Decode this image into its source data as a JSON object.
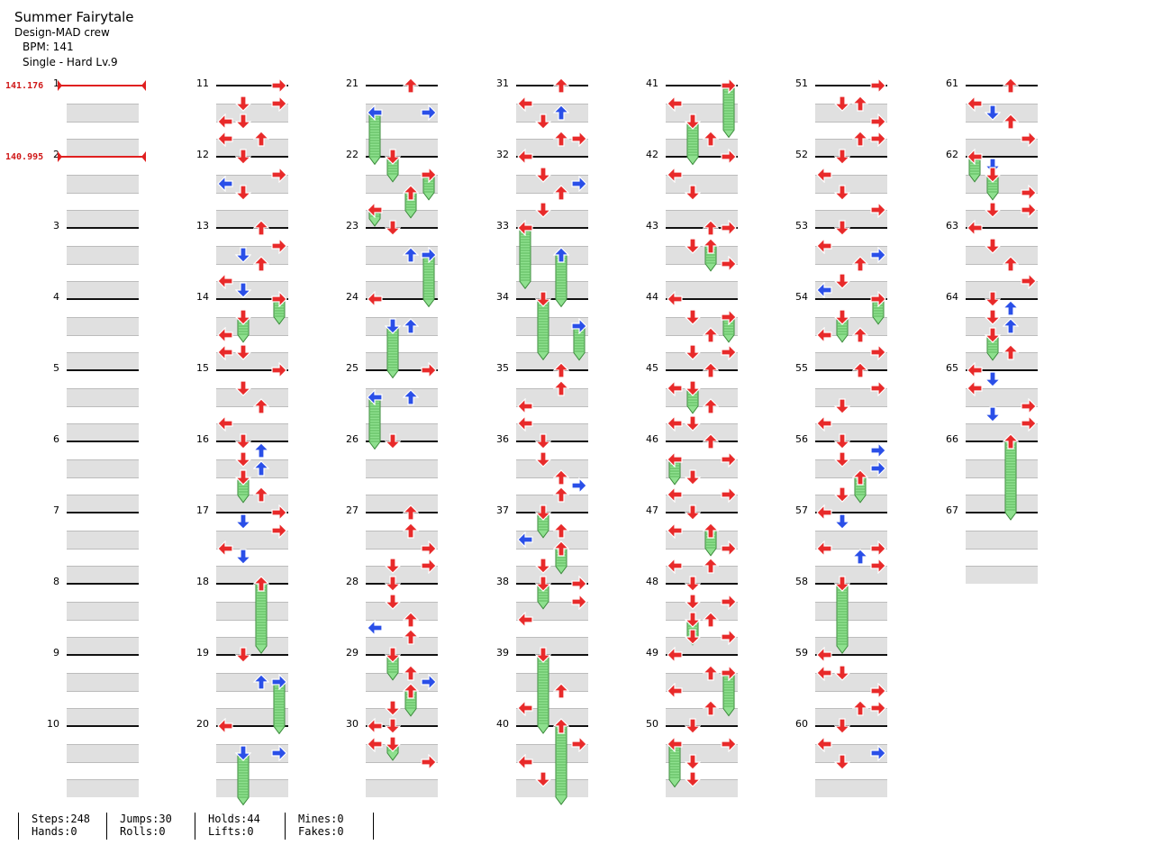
{
  "header": {
    "title": "Summer Fairytale",
    "artist": "Design-MAD crew",
    "bpm": "BPM: 141",
    "difficulty": "Single - Hard  Lv.9"
  },
  "bpm_changes": [
    {
      "label": "141.176",
      "measure": 1
    },
    {
      "label": "140.995",
      "measure": 2
    }
  ],
  "colors": {
    "quarter": "#e82a2a",
    "eighth": "#2a4fe8",
    "hold": "#8ee08e",
    "bpm": "#e02020"
  },
  "directions": [
    "left",
    "down",
    "up",
    "right"
  ],
  "columns": [
    {
      "start": 1,
      "end": 10
    },
    {
      "start": 11,
      "end": 20
    },
    {
      "start": 21,
      "end": 30
    },
    {
      "start": 31,
      "end": 40
    },
    {
      "start": 41,
      "end": 50
    },
    {
      "start": 51,
      "end": 60
    },
    {
      "start": 61,
      "end": 67
    }
  ],
  "notes": [
    {
      "m": 11,
      "b": 0,
      "l": 3
    },
    {
      "m": 11,
      "b": 1,
      "l": 1
    },
    {
      "m": 11,
      "b": 1,
      "l": 3
    },
    {
      "m": 11,
      "b": 2,
      "l": 0
    },
    {
      "m": 11,
      "b": 2,
      "l": 1
    },
    {
      "m": 11,
      "b": 3,
      "l": 0
    },
    {
      "m": 11,
      "b": 3,
      "l": 2
    },
    {
      "m": 12,
      "b": 0,
      "l": 1
    },
    {
      "m": 12,
      "b": 1,
      "l": 3
    },
    {
      "m": 12,
      "b": 1.5,
      "l": 0
    },
    {
      "m": 12,
      "b": 2,
      "l": 1
    },
    {
      "m": 13,
      "b": 0,
      "l": 2
    },
    {
      "m": 13,
      "b": 1,
      "l": 3
    },
    {
      "m": 13,
      "b": 1.5,
      "l": 1
    },
    {
      "m": 13,
      "b": 2,
      "l": 2
    },
    {
      "m": 13,
      "b": 3,
      "l": 0
    },
    {
      "m": 13,
      "b": 3.5,
      "l": 1
    },
    {
      "m": 14,
      "b": 0,
      "l": 3,
      "h": 1
    },
    {
      "m": 14,
      "b": 1,
      "l": 1,
      "h": 1
    },
    {
      "m": 14,
      "b": 2,
      "l": 0
    },
    {
      "m": 14,
      "b": 3,
      "l": 0
    },
    {
      "m": 14,
      "b": 3,
      "l": 1
    },
    {
      "m": 15,
      "b": 0,
      "l": 3
    },
    {
      "m": 15,
      "b": 1,
      "l": 1
    },
    {
      "m": 15,
      "b": 2,
      "l": 2
    },
    {
      "m": 15,
      "b": 3,
      "l": 0
    },
    {
      "m": 16,
      "b": 0,
      "l": 1
    },
    {
      "m": 16,
      "b": 0.5,
      "l": 2
    },
    {
      "m": 16,
      "b": 1,
      "l": 1
    },
    {
      "m": 16,
      "b": 1.5,
      "l": 2
    },
    {
      "m": 16,
      "b": 2,
      "l": 1,
      "h": 1
    },
    {
      "m": 16,
      "b": 3,
      "l": 2
    },
    {
      "m": 17,
      "b": 0,
      "l": 3
    },
    {
      "m": 17,
      "b": 0.5,
      "l": 1
    },
    {
      "m": 17,
      "b": 1,
      "l": 3
    },
    {
      "m": 17,
      "b": 2,
      "l": 0
    },
    {
      "m": 17,
      "b": 2.5,
      "l": 1
    },
    {
      "m": 18,
      "b": 0,
      "l": 2,
      "h": 3.5
    },
    {
      "m": 19,
      "b": 0,
      "l": 1
    },
    {
      "m": 19,
      "b": 1.5,
      "l": 2
    },
    {
      "m": 19,
      "b": 1.5,
      "l": 3,
      "h": 2.5
    },
    {
      "m": 20,
      "b": 0,
      "l": 0
    },
    {
      "m": 20,
      "b": 1.5,
      "l": 1,
      "h": 2.5
    },
    {
      "m": 20,
      "b": 1.5,
      "l": 3
    },
    {
      "m": 21,
      "b": 0,
      "l": 2
    },
    {
      "m": 21,
      "b": 1.5,
      "l": 0,
      "h": 2.5
    },
    {
      "m": 21,
      "b": 1.5,
      "l": 3
    },
    {
      "m": 22,
      "b": 0,
      "l": 1,
      "h": 1
    },
    {
      "m": 22,
      "b": 1,
      "l": 3,
      "h": 1
    },
    {
      "m": 22,
      "b": 2,
      "l": 2,
      "h": 1
    },
    {
      "m": 22,
      "b": 3,
      "l": 0,
      "h": 0.5
    },
    {
      "m": 23,
      "b": 0,
      "l": 1
    },
    {
      "m": 23,
      "b": 1.5,
      "l": 2
    },
    {
      "m": 23,
      "b": 1.5,
      "l": 3,
      "h": 2.5
    },
    {
      "m": 24,
      "b": 0,
      "l": 0
    },
    {
      "m": 24,
      "b": 1.5,
      "l": 1,
      "h": 2.5
    },
    {
      "m": 24,
      "b": 1.5,
      "l": 2
    },
    {
      "m": 25,
      "b": 0,
      "l": 3
    },
    {
      "m": 25,
      "b": 1.5,
      "l": 0,
      "h": 2.5
    },
    {
      "m": 25,
      "b": 1.5,
      "l": 2
    },
    {
      "m": 26,
      "b": 0,
      "l": 1
    },
    {
      "m": 27,
      "b": 0,
      "l": 2
    },
    {
      "m": 27,
      "b": 1,
      "l": 2
    },
    {
      "m": 27,
      "b": 2,
      "l": 3
    },
    {
      "m": 27,
      "b": 3,
      "l": 3
    },
    {
      "m": 27,
      "b": 3,
      "l": 1
    },
    {
      "m": 28,
      "b": 0,
      "l": 1
    },
    {
      "m": 28,
      "b": 1,
      "l": 1
    },
    {
      "m": 28,
      "b": 2,
      "l": 2
    },
    {
      "m": 28,
      "b": 2.5,
      "l": 0
    },
    {
      "m": 28,
      "b": 3,
      "l": 2
    },
    {
      "m": 29,
      "b": 0,
      "l": 1,
      "h": 1
    },
    {
      "m": 29,
      "b": 1,
      "l": 2
    },
    {
      "m": 29,
      "b": 1.5,
      "l": 3
    },
    {
      "m": 29,
      "b": 2,
      "l": 2,
      "h": 1
    },
    {
      "m": 29,
      "b": 3,
      "l": 1
    },
    {
      "m": 30,
      "b": 0,
      "l": 1
    },
    {
      "m": 30,
      "b": 0,
      "l": 0
    },
    {
      "m": 30,
      "b": 1,
      "l": 1,
      "h": 0.5
    },
    {
      "m": 30,
      "b": 1,
      "l": 0
    },
    {
      "m": 30,
      "b": 2,
      "l": 3
    },
    {
      "m": 31,
      "b": 0,
      "l": 2
    },
    {
      "m": 31,
      "b": 1,
      "l": 0
    },
    {
      "m": 31,
      "b": 1.5,
      "l": 2
    },
    {
      "m": 31,
      "b": 2,
      "l": 1
    },
    {
      "m": 31,
      "b": 3,
      "l": 2
    },
    {
      "m": 31,
      "b": 3,
      "l": 3
    },
    {
      "m": 32,
      "b": 0,
      "l": 0
    },
    {
      "m": 32,
      "b": 1,
      "l": 1
    },
    {
      "m": 32,
      "b": 1.5,
      "l": 3
    },
    {
      "m": 32,
      "b": 2,
      "l": 2
    },
    {
      "m": 32,
      "b": 3,
      "l": 1
    },
    {
      "m": 33,
      "b": 0,
      "l": 0,
      "h": 3
    },
    {
      "m": 33,
      "b": 1.5,
      "l": 2,
      "h": 2.5
    },
    {
      "m": 34,
      "b": 0,
      "l": 1,
      "h": 3
    },
    {
      "m": 34,
      "b": 1.5,
      "l": 3,
      "h": 1.5
    },
    {
      "m": 35,
      "b": 0,
      "l": 2
    },
    {
      "m": 35,
      "b": 1,
      "l": 2
    },
    {
      "m": 35,
      "b": 2,
      "l": 0
    },
    {
      "m": 35,
      "b": 3,
      "l": 0
    },
    {
      "m": 36,
      "b": 0,
      "l": 1
    },
    {
      "m": 36,
      "b": 1,
      "l": 1
    },
    {
      "m": 36,
      "b": 2,
      "l": 2
    },
    {
      "m": 36,
      "b": 2.5,
      "l": 3
    },
    {
      "m": 36,
      "b": 3,
      "l": 2
    },
    {
      "m": 37,
      "b": 0,
      "l": 1,
      "h": 1
    },
    {
      "m": 37,
      "b": 1,
      "l": 2
    },
    {
      "m": 37,
      "b": 1.5,
      "l": 0
    },
    {
      "m": 37,
      "b": 2,
      "l": 2,
      "h": 1
    },
    {
      "m": 37,
      "b": 3,
      "l": 1
    },
    {
      "m": 38,
      "b": 0,
      "l": 3
    },
    {
      "m": 38,
      "b": 0,
      "l": 1,
      "h": 1
    },
    {
      "m": 38,
      "b": 1,
      "l": 3
    },
    {
      "m": 38,
      "b": 2,
      "l": 0
    },
    {
      "m": 39,
      "b": 0,
      "l": 1,
      "h": 4
    },
    {
      "m": 39,
      "b": 2,
      "l": 2
    },
    {
      "m": 39,
      "b": 3,
      "l": 0
    },
    {
      "m": 40,
      "b": 0,
      "l": 2,
      "h": 4
    },
    {
      "m": 40,
      "b": 1,
      "l": 3
    },
    {
      "m": 40,
      "b": 2,
      "l": 0
    },
    {
      "m": 40,
      "b": 3,
      "l": 1
    },
    {
      "m": 41,
      "b": 0,
      "l": 3,
      "h": 2.5
    },
    {
      "m": 41,
      "b": 1,
      "l": 0
    },
    {
      "m": 41,
      "b": 2,
      "l": 1,
      "h": 2
    },
    {
      "m": 41,
      "b": 3,
      "l": 2
    },
    {
      "m": 42,
      "b": 0,
      "l": 3
    },
    {
      "m": 42,
      "b": 1,
      "l": 0
    },
    {
      "m": 42,
      "b": 2,
      "l": 1
    },
    {
      "m": 43,
      "b": 0,
      "l": 2
    },
    {
      "m": 43,
      "b": 0,
      "l": 3
    },
    {
      "m": 43,
      "b": 1,
      "l": 1
    },
    {
      "m": 43,
      "b": 1,
      "l": 2,
      "h": 1
    },
    {
      "m": 43,
      "b": 2,
      "l": 3
    },
    {
      "m": 44,
      "b": 0,
      "l": 0
    },
    {
      "m": 44,
      "b": 1,
      "l": 1
    },
    {
      "m": 44,
      "b": 1,
      "l": 3,
      "h": 1
    },
    {
      "m": 44,
      "b": 2,
      "l": 2
    },
    {
      "m": 44,
      "b": 3,
      "l": 1
    },
    {
      "m": 44,
      "b": 3,
      "l": 3
    },
    {
      "m": 45,
      "b": 0,
      "l": 2
    },
    {
      "m": 45,
      "b": 1,
      "l": 0
    },
    {
      "m": 45,
      "b": 1,
      "l": 1,
      "h": 1
    },
    {
      "m": 45,
      "b": 2,
      "l": 2
    },
    {
      "m": 45,
      "b": 3,
      "l": 0
    },
    {
      "m": 45,
      "b": 3,
      "l": 1
    },
    {
      "m": 46,
      "b": 0,
      "l": 2
    },
    {
      "m": 46,
      "b": 1,
      "l": 3
    },
    {
      "m": 46,
      "b": 1,
      "l": 0,
      "h": 1
    },
    {
      "m": 46,
      "b": 2,
      "l": 1
    },
    {
      "m": 46,
      "b": 3,
      "l": 0
    },
    {
      "m": 46,
      "b": 3,
      "l": 3
    },
    {
      "m": 47,
      "b": 0,
      "l": 1
    },
    {
      "m": 47,
      "b": 1,
      "l": 0
    },
    {
      "m": 47,
      "b": 1,
      "l": 2,
      "h": 1
    },
    {
      "m": 47,
      "b": 2,
      "l": 3
    },
    {
      "m": 47,
      "b": 3,
      "l": 0
    },
    {
      "m": 47,
      "b": 3,
      "l": 2
    },
    {
      "m": 48,
      "b": 0,
      "l": 1
    },
    {
      "m": 48,
      "b": 1,
      "l": 1
    },
    {
      "m": 48,
      "b": 1,
      "l": 3
    },
    {
      "m": 48,
      "b": 2,
      "l": 1,
      "h": 1
    },
    {
      "m": 48,
      "b": 2,
      "l": 2
    },
    {
      "m": 48,
      "b": 3,
      "l": 3
    },
    {
      "m": 48,
      "b": 3,
      "l": 1
    },
    {
      "m": 49,
      "b": 0,
      "l": 0
    },
    {
      "m": 49,
      "b": 1,
      "l": 2
    },
    {
      "m": 49,
      "b": 1,
      "l": 3,
      "h": 2
    },
    {
      "m": 49,
      "b": 2,
      "l": 0
    },
    {
      "m": 49,
      "b": 3,
      "l": 2
    },
    {
      "m": 50,
      "b": 0,
      "l": 1
    },
    {
      "m": 50,
      "b": 1,
      "l": 0,
      "h": 2
    },
    {
      "m": 50,
      "b": 1,
      "l": 3
    },
    {
      "m": 50,
      "b": 2,
      "l": 1
    },
    {
      "m": 50,
      "b": 3,
      "l": 1
    },
    {
      "m": 51,
      "b": 0,
      "l": 3
    },
    {
      "m": 51,
      "b": 1,
      "l": 1
    },
    {
      "m": 51,
      "b": 1,
      "l": 2
    },
    {
      "m": 51,
      "b": 2,
      "l": 3
    },
    {
      "m": 51,
      "b": 3,
      "l": 2
    },
    {
      "m": 51,
      "b": 3,
      "l": 3
    },
    {
      "m": 52,
      "b": 0,
      "l": 1
    },
    {
      "m": 52,
      "b": 1,
      "l": 0
    },
    {
      "m": 52,
      "b": 2,
      "l": 1
    },
    {
      "m": 52,
      "b": 3,
      "l": 3
    },
    {
      "m": 53,
      "b": 0,
      "l": 1
    },
    {
      "m": 53,
      "b": 1,
      "l": 0
    },
    {
      "m": 53,
      "b": 1.5,
      "l": 3
    },
    {
      "m": 53,
      "b": 2,
      "l": 2
    },
    {
      "m": 53,
      "b": 3,
      "l": 1
    },
    {
      "m": 53,
      "b": 3.5,
      "l": 0
    },
    {
      "m": 54,
      "b": 0,
      "l": 3,
      "h": 1
    },
    {
      "m": 54,
      "b": 1,
      "l": 1,
      "h": 1
    },
    {
      "m": 54,
      "b": 2,
      "l": 0
    },
    {
      "m": 54,
      "b": 2,
      "l": 2
    },
    {
      "m": 54,
      "b": 3,
      "l": 3
    },
    {
      "m": 55,
      "b": 0,
      "l": 2
    },
    {
      "m": 55,
      "b": 1,
      "l": 3
    },
    {
      "m": 55,
      "b": 2,
      "l": 1
    },
    {
      "m": 55,
      "b": 3,
      "l": 0
    },
    {
      "m": 56,
      "b": 0,
      "l": 1
    },
    {
      "m": 56,
      "b": 0.5,
      "l": 3
    },
    {
      "m": 56,
      "b": 1,
      "l": 1
    },
    {
      "m": 56,
      "b": 1.5,
      "l": 3
    },
    {
      "m": 56,
      "b": 2,
      "l": 2,
      "h": 1
    },
    {
      "m": 56,
      "b": 3,
      "l": 1
    },
    {
      "m": 57,
      "b": 0,
      "l": 0
    },
    {
      "m": 57,
      "b": 0.5,
      "l": 1
    },
    {
      "m": 57,
      "b": 2,
      "l": 0
    },
    {
      "m": 57,
      "b": 2,
      "l": 3
    },
    {
      "m": 57,
      "b": 2.5,
      "l": 2
    },
    {
      "m": 57,
      "b": 3,
      "l": 3
    },
    {
      "m": 58,
      "b": 0,
      "l": 1,
      "h": 3.5
    },
    {
      "m": 59,
      "b": 0,
      "l": 0
    },
    {
      "m": 59,
      "b": 1,
      "l": 1
    },
    {
      "m": 59,
      "b": 1,
      "l": 0
    },
    {
      "m": 59,
      "b": 2,
      "l": 3
    },
    {
      "m": 59,
      "b": 3,
      "l": 2
    },
    {
      "m": 59,
      "b": 3,
      "l": 3
    },
    {
      "m": 60,
      "b": 0,
      "l": 1
    },
    {
      "m": 60,
      "b": 1,
      "l": 0
    },
    {
      "m": 60,
      "b": 1.5,
      "l": 3
    },
    {
      "m": 60,
      "b": 2,
      "l": 1
    },
    {
      "m": 61,
      "b": 0,
      "l": 2
    },
    {
      "m": 61,
      "b": 1,
      "l": 0
    },
    {
      "m": 61,
      "b": 1.5,
      "l": 1
    },
    {
      "m": 61,
      "b": 2,
      "l": 2
    },
    {
      "m": 61,
      "b": 3,
      "l": 3
    },
    {
      "m": 62,
      "b": 0,
      "l": 0,
      "h": 1
    },
    {
      "m": 62,
      "b": 0.5,
      "l": 1
    },
    {
      "m": 62,
      "b": 1,
      "l": 1,
      "h": 1
    },
    {
      "m": 62,
      "b": 2,
      "l": 3
    },
    {
      "m": 62,
      "b": 3,
      "l": 1
    },
    {
      "m": 62,
      "b": 3,
      "l": 3
    },
    {
      "m": 63,
      "b": 0,
      "l": 0
    },
    {
      "m": 63,
      "b": 1,
      "l": 1
    },
    {
      "m": 63,
      "b": 2,
      "l": 2
    },
    {
      "m": 63,
      "b": 3,
      "l": 3
    },
    {
      "m": 64,
      "b": 0,
      "l": 1
    },
    {
      "m": 64,
      "b": 0.5,
      "l": 2
    },
    {
      "m": 64,
      "b": 1,
      "l": 1
    },
    {
      "m": 64,
      "b": 1.5,
      "l": 2
    },
    {
      "m": 64,
      "b": 2,
      "l": 1,
      "h": 1
    },
    {
      "m": 64,
      "b": 3,
      "l": 2
    },
    {
      "m": 65,
      "b": 0,
      "l": 0
    },
    {
      "m": 65,
      "b": 0.5,
      "l": 1
    },
    {
      "m": 65,
      "b": 1,
      "l": 0
    },
    {
      "m": 65,
      "b": 2,
      "l": 3
    },
    {
      "m": 65,
      "b": 2.5,
      "l": 1
    },
    {
      "m": 65,
      "b": 3,
      "l": 3
    },
    {
      "m": 66,
      "b": 0,
      "l": 2,
      "h": 4
    }
  ],
  "stats": [
    {
      "top": "Steps:248",
      "bottom": "Hands:0"
    },
    {
      "top": "Jumps:30",
      "bottom": "Rolls:0"
    },
    {
      "top": "Holds:44",
      "bottom": "Lifts:0"
    },
    {
      "top": "Mines:0",
      "bottom": "Fakes:0"
    }
  ]
}
